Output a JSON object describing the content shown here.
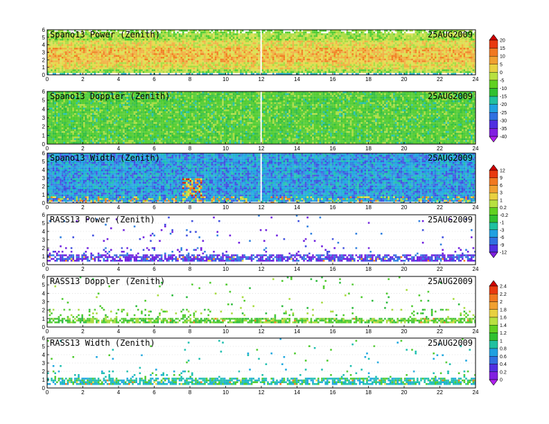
{
  "figure": {
    "title": "",
    "date": "25AUG2009"
  },
  "chart_data": [
    {
      "type": "heatmap",
      "title": "Spano13 Power (Zenith)",
      "date": "25AUG2009",
      "xlim": [
        0,
        24
      ],
      "ylim": [
        0,
        6
      ],
      "x_ticks": [
        0,
        2,
        4,
        6,
        8,
        10,
        12,
        14,
        16,
        18,
        20,
        22,
        24
      ],
      "y_ticks": [
        0,
        1,
        2,
        3,
        4,
        5,
        6
      ],
      "colorbar_group": 0,
      "pattern": "power",
      "description_values": "dense field; band of higher power near 2–3.5 km, lower above 5 km"
    },
    {
      "type": "heatmap",
      "title": "Spano13 Doppler (Zenith)",
      "date": "25AUG2009",
      "xlim": [
        0,
        24
      ],
      "ylim": [
        0,
        6
      ],
      "x_ticks": [
        0,
        2,
        4,
        6,
        8,
        10,
        12,
        14,
        16,
        18,
        20,
        22,
        24
      ],
      "y_ticks": [
        0,
        1,
        2,
        3,
        4,
        5,
        6
      ],
      "colorbar_group": 0,
      "pattern": "doppler"
    },
    {
      "type": "heatmap",
      "title": "Spano13 Width (Zenith)",
      "date": "25AUG2009",
      "xlim": [
        0,
        24
      ],
      "ylim": [
        0,
        6
      ],
      "x_ticks": [
        0,
        2,
        4,
        6,
        8,
        10,
        12,
        14,
        16,
        18,
        20,
        22,
        24
      ],
      "y_ticks": [
        0,
        1,
        2,
        3,
        4,
        5,
        6
      ],
      "colorbar_group": 1,
      "pattern": "width"
    },
    {
      "type": "heatmap",
      "title": "RASS13 Power (Zenith)",
      "date": "25AUG2009",
      "xlim": [
        0,
        24
      ],
      "ylim": [
        0,
        6
      ],
      "x_ticks": [
        0,
        2,
        4,
        6,
        8,
        10,
        12,
        14,
        16,
        18,
        20,
        22,
        24
      ],
      "y_ticks": [
        0,
        1,
        2,
        3,
        4,
        5,
        6
      ],
      "colorbar_group": 1,
      "pattern": "rass_power"
    },
    {
      "type": "heatmap",
      "title": "RASS13 Doppler (Zenith)",
      "date": "25AUG2009",
      "xlim": [
        0,
        24
      ],
      "ylim": [
        0,
        6
      ],
      "x_ticks": [
        0,
        2,
        4,
        6,
        8,
        10,
        12,
        14,
        16,
        18,
        20,
        22,
        24
      ],
      "y_ticks": [
        0,
        1,
        2,
        3,
        4,
        5,
        6
      ],
      "colorbar_group": 2,
      "pattern": "rass_doppler"
    },
    {
      "type": "heatmap",
      "title": "RASS13 Width (Zenith)",
      "date": "25AUG2009",
      "xlim": [
        0,
        24
      ],
      "ylim": [
        0,
        6
      ],
      "x_ticks": [
        0,
        2,
        4,
        6,
        8,
        10,
        12,
        14,
        16,
        18,
        20,
        22,
        24
      ],
      "y_ticks": [
        0,
        1,
        2,
        3,
        4,
        5,
        6
      ],
      "colorbar_group": 2,
      "pattern": "rass_width"
    }
  ],
  "colorbars": [
    {
      "labels": [
        "20",
        "15",
        "10",
        "5",
        "0",
        "-5",
        "-10",
        "-15",
        "-20",
        "-25",
        "-30",
        "-35",
        "-40"
      ],
      "colors": [
        "#d00000",
        "#e83a10",
        "#f07820",
        "#f0a030",
        "#e8d040",
        "#b8e040",
        "#60d020",
        "#30c030",
        "#20c0a0",
        "#20a0e0",
        "#3070e0",
        "#5030e0",
        "#8020e0",
        "#b020f0"
      ]
    },
    {
      "labels": [
        "12",
        "9",
        "6",
        "3",
        "1",
        "0.2",
        "-0.2",
        "-1",
        "-3",
        "-6",
        "-9",
        "-12"
      ],
      "colors": [
        "#d00000",
        "#e83a10",
        "#f07820",
        "#f0a030",
        "#e8d040",
        "#b8e040",
        "#60d020",
        "#30c030",
        "#20c0a0",
        "#20a0e0",
        "#3070e0",
        "#5030e0",
        "#8020e0"
      ]
    },
    {
      "labels": [
        "2.4",
        "2.2",
        "2",
        "1.8",
        "1.6",
        "1.4",
        "1.2",
        "1",
        "0.8",
        "0.6",
        "0.4",
        "0.2",
        "0"
      ],
      "colors": [
        "#d00000",
        "#e83a10",
        "#f07820",
        "#f0a030",
        "#e8d040",
        "#b8e040",
        "#60d020",
        "#30c030",
        "#20c0a0",
        "#20a0e0",
        "#3070e0",
        "#5030e0",
        "#8020e0",
        "#b020f0"
      ]
    }
  ]
}
